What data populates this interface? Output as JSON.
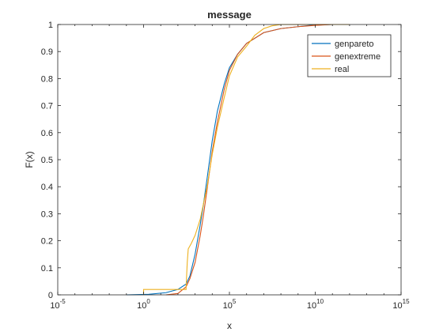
{
  "chart_data": {
    "type": "line",
    "title": "message",
    "xlabel": "x",
    "ylabel": "F(x)",
    "xscale": "log",
    "xlim": [
      1e-05,
      1000000000000000.0
    ],
    "ylim": [
      0,
      1
    ],
    "xticks": [
      {
        "value": 1e-05,
        "base": "10",
        "exp": "-5"
      },
      {
        "value": 1,
        "base": "10",
        "exp": "0"
      },
      {
        "value": 100000.0,
        "base": "10",
        "exp": "5"
      },
      {
        "value": 10000000000.0,
        "base": "10",
        "exp": "10"
      },
      {
        "value": 1000000000000000.0,
        "base": "10",
        "exp": "15"
      }
    ],
    "yticks": [
      "0",
      "0.1",
      "0.2",
      "0.3",
      "0.4",
      "0.5",
      "0.6",
      "0.7",
      "0.8",
      "0.9",
      "1"
    ],
    "grid": false,
    "legend_position": "top-right",
    "series": [
      {
        "name": "genpareto",
        "color": "#0072BD",
        "points": [
          [
            0.1,
            0
          ],
          [
            2,
            0.002
          ],
          [
            20,
            0.008
          ],
          [
            100,
            0.02
          ],
          [
            300,
            0.04
          ],
          [
            500,
            0.07
          ],
          [
            1000,
            0.15
          ],
          [
            2000,
            0.26
          ],
          [
            3000,
            0.33
          ],
          [
            5000,
            0.43
          ],
          [
            10000.0,
            0.57
          ],
          [
            20000.0,
            0.68
          ],
          [
            50000.0,
            0.78
          ],
          [
            100000.0,
            0.84
          ],
          [
            300000.0,
            0.89
          ],
          [
            1000000.0,
            0.93
          ],
          [
            10000000.0,
            0.97
          ],
          [
            100000000.0,
            0.985
          ],
          [
            1000000000.0,
            0.992
          ],
          [
            5000000000.0,
            0.997
          ],
          [
            100000000000.0,
            1.0
          ]
        ]
      },
      {
        "name": "genextreme",
        "color": "#D95319",
        "points": [
          [
            20,
            0
          ],
          [
            100,
            0.005
          ],
          [
            300,
            0.03
          ],
          [
            500,
            0.06
          ],
          [
            1000,
            0.12
          ],
          [
            2000,
            0.22
          ],
          [
            3000,
            0.29
          ],
          [
            5000,
            0.39
          ],
          [
            10000.0,
            0.53
          ],
          [
            20000.0,
            0.64
          ],
          [
            50000.0,
            0.76
          ],
          [
            100000.0,
            0.83
          ],
          [
            300000.0,
            0.89
          ],
          [
            1000000.0,
            0.93
          ],
          [
            10000000.0,
            0.97
          ],
          [
            100000000.0,
            0.985
          ],
          [
            1000000000.0,
            0.992
          ],
          [
            10000000000.0,
            0.997
          ],
          [
            100000000000.0,
            1.0
          ]
        ]
      },
      {
        "name": "real",
        "color": "#EDB120",
        "points": [
          [
            1,
            0
          ],
          [
            1,
            0.02
          ],
          [
            300,
            0.02
          ],
          [
            300,
            0.03
          ],
          [
            350,
            0.12
          ],
          [
            400,
            0.17
          ],
          [
            600,
            0.19
          ],
          [
            1000,
            0.22
          ],
          [
            2000,
            0.28
          ],
          [
            5000,
            0.4
          ],
          [
            10000.0,
            0.52
          ],
          [
            20000.0,
            0.62
          ],
          [
            50000.0,
            0.73
          ],
          [
            100000.0,
            0.81
          ],
          [
            300000.0,
            0.88
          ],
          [
            1000000.0,
            0.92
          ],
          [
            3000000.0,
            0.96
          ],
          [
            10000000.0,
            0.985
          ],
          [
            30000000.0,
            0.995
          ],
          [
            100000000.0,
            1.0
          ],
          [
            1000000000000.0,
            1.0
          ]
        ]
      }
    ]
  }
}
